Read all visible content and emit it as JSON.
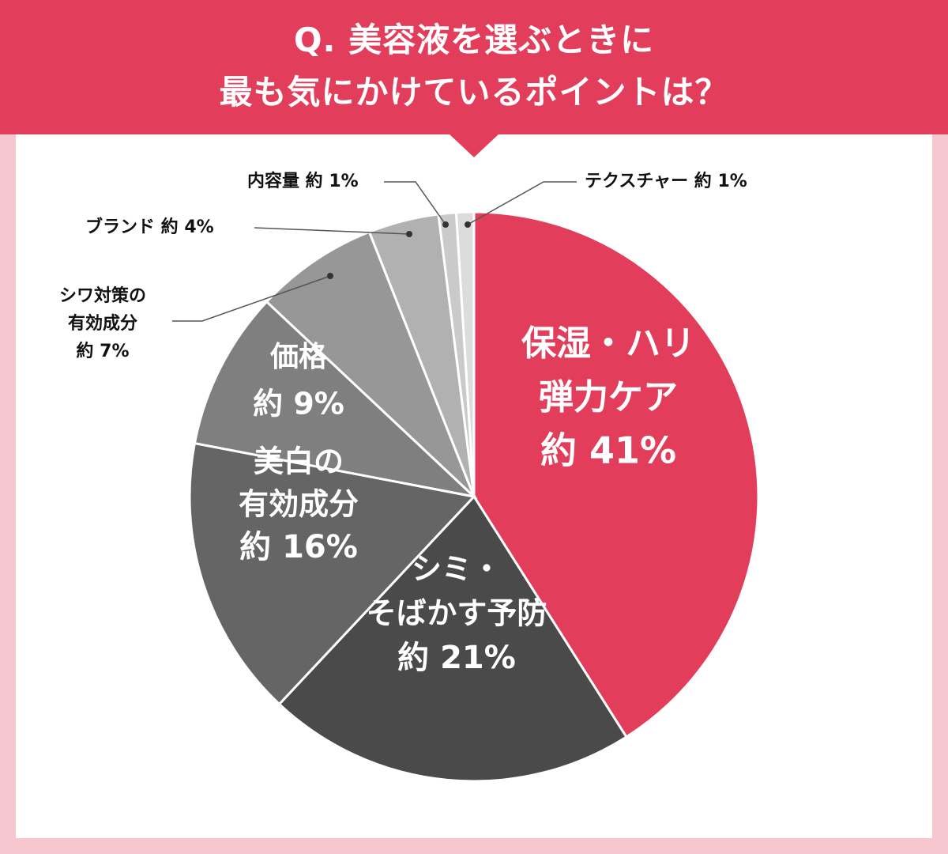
{
  "title": {
    "line1": "Q. 美容液を選ぶときに",
    "line2": "最も気にかけているポイントは？"
  },
  "chart_data": {
    "type": "pie",
    "start": "top",
    "direction": "clockwise",
    "slices": [
      {
        "name": "保湿・ハリ弾力ケア",
        "label_lines": [
          "保湿・ハリ",
          "弾力ケア"
        ],
        "value_text": "約 41%",
        "value": 41,
        "color": "#e23d5a",
        "label_position": "inside"
      },
      {
        "name": "シミ・そばかす予防",
        "label_lines": [
          "シミ・",
          "そばかす予防"
        ],
        "value_text": "約 21%",
        "value": 21,
        "color": "#4a4a4a",
        "label_position": "inside"
      },
      {
        "name": "美白の有効成分",
        "label_lines": [
          "美白の",
          "有効成分"
        ],
        "value_text": "約 16%",
        "value": 16,
        "color": "#656565",
        "label_position": "inside"
      },
      {
        "name": "価格",
        "label_lines": [
          "価格"
        ],
        "value_text": "約 9%",
        "value": 9,
        "color": "#7f7f7f",
        "label_position": "inside"
      },
      {
        "name": "シワ対策の有効成分",
        "label_lines": [
          "シワ対策の",
          "有効成分"
        ],
        "value_text": "約 7%",
        "value": 7,
        "color": "#979797",
        "label_position": "outside"
      },
      {
        "name": "ブランド",
        "label_lines": [
          "ブランド"
        ],
        "value_text": "約 4%",
        "value": 4,
        "color": "#b1b1b1",
        "label_position": "outside"
      },
      {
        "name": "内容量",
        "label_lines": [
          "内容量"
        ],
        "value_text": "約 1%",
        "value": 1,
        "color": "#cacaca",
        "label_position": "outside"
      },
      {
        "name": "テクスチャー",
        "label_lines": [
          "テクスチャー"
        ],
        "value_text": "約 1%",
        "value": 1,
        "color": "#dcdcdc",
        "label_position": "outside"
      }
    ]
  }
}
